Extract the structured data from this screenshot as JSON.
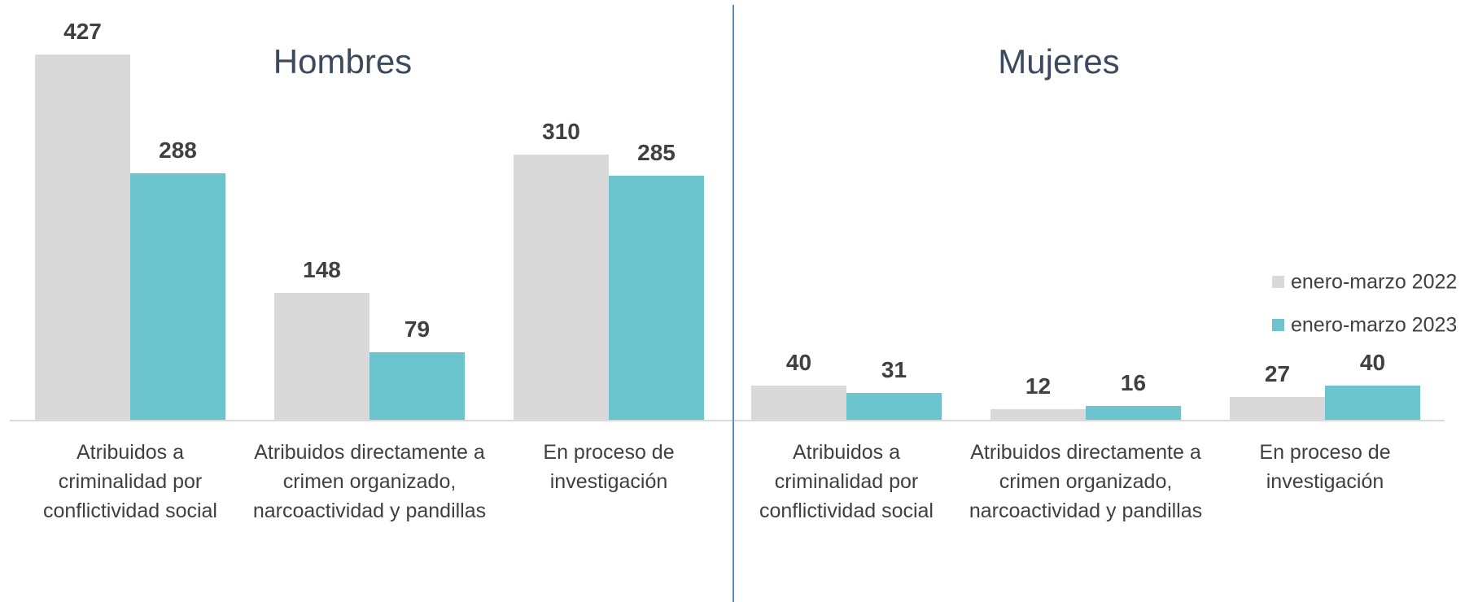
{
  "chart_data": [
    {
      "type": "bar",
      "title": "Hombres",
      "categories": [
        "Atribuidos a criminalidad por conflictividad social",
        "Atribuidos directamente a crimen organizado, narcoactividad y pandillas",
        "En proceso de investigación"
      ],
      "series": [
        {
          "name": "enero-marzo 2022",
          "color": "#d9d9d9",
          "values": [
            427,
            148,
            310
          ]
        },
        {
          "name": "enero-marzo 2023",
          "color": "#6cc4cf",
          "values": [
            288,
            79,
            285
          ]
        }
      ],
      "ylim": [
        0,
        470
      ]
    },
    {
      "type": "bar",
      "title": "Mujeres",
      "categories": [
        "Atribuidos a criminalidad por conflictividad social",
        "Atribuidos directamente a crimen organizado, narcoactividad y pandillas",
        "En proceso de investigación"
      ],
      "series": [
        {
          "name": "enero-marzo 2022",
          "color": "#d9d9d9",
          "values": [
            40,
            12,
            27
          ]
        },
        {
          "name": "enero-marzo 2023",
          "color": "#6cc4cf",
          "values": [
            31,
            16,
            40
          ]
        }
      ],
      "ylim": [
        0,
        470
      ],
      "legend": "right"
    }
  ]
}
